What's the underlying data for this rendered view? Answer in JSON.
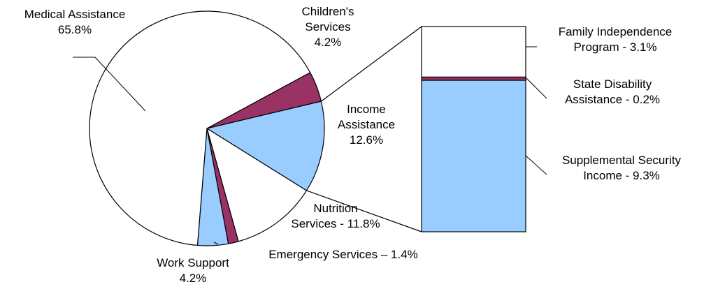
{
  "chart_data": {
    "type": "pie",
    "slices": [
      {
        "name": "Children's Services",
        "value": 4.2,
        "label_lines": [
          "Children's",
          "Services",
          "4.2%"
        ],
        "color": "#993366"
      },
      {
        "name": "Income Assistance",
        "value": 12.6,
        "label_lines": [
          "Income",
          "Assistance",
          "12.6%"
        ],
        "color": "#99ccff"
      },
      {
        "name": "Nutrition Services",
        "value": 11.8,
        "label_lines": [
          "Nutrition",
          "Services - 11.8%"
        ],
        "color": "#ffffff"
      },
      {
        "name": "Emergency Services",
        "value": 1.4,
        "label_lines": [
          "Emergency Services – 1.4%"
        ],
        "color": "#993366"
      },
      {
        "name": "Work Support",
        "value": 4.2,
        "label_lines": [
          "Work Support",
          "4.2%"
        ],
        "color": "#99ccff"
      },
      {
        "name": "Medical Assistance",
        "value": 65.8,
        "label_lines": [
          "Medical Assistance",
          "65.8%"
        ],
        "color": "#ffffff"
      }
    ],
    "breakdown": {
      "of": "Income Assistance",
      "type": "stacked_bar",
      "segments": [
        {
          "name": "Supplemental Security Income",
          "value": 9.3,
          "label_lines": [
            "Supplemental Security",
            "Income - 9.3%"
          ],
          "color": "#99ccff"
        },
        {
          "name": "State Disability Assistance",
          "value": 0.2,
          "label_lines": [
            "State Disability",
            "Assistance - 0.2%"
          ],
          "color": "#993366"
        },
        {
          "name": "Family Independence Program",
          "value": 3.1,
          "label_lines": [
            "Family Independence",
            "Program - 3.1%"
          ],
          "color": "#ffffff"
        }
      ]
    },
    "colors": {
      "outline": "#000000",
      "magenta": "#993366",
      "light_blue": "#99ccff"
    }
  }
}
